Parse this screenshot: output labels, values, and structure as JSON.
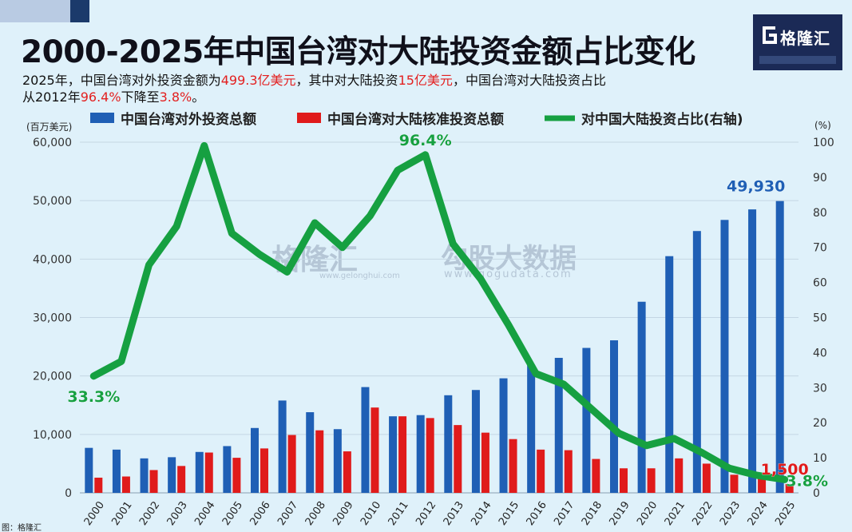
{
  "header": {
    "title": "2000-2025年中国台湾对大陆投资金额占比变化",
    "subtitle_line1": [
      {
        "text": "2025年，中国台湾对外投资金额为",
        "hl": false
      },
      {
        "text": "499.3亿美元",
        "hl": true
      },
      {
        "text": "，其中对大陆投资",
        "hl": false
      },
      {
        "text": "15亿美元",
        "hl": true
      },
      {
        "text": "，中国台湾对大陆投资占比",
        "hl": false
      }
    ],
    "subtitle_line2": [
      {
        "text": "从2012年",
        "hl": false
      },
      {
        "text": "96.4%",
        "hl": true
      },
      {
        "text": "下降至",
        "hl": false
      },
      {
        "text": "3.8%",
        "hl": true
      },
      {
        "text": "。",
        "hl": false
      }
    ]
  },
  "logo": {
    "text": "格隆汇",
    "icon": "g-logo-icon"
  },
  "watermark": {
    "left": "格隆汇",
    "left_url": "www.gelonghui.com",
    "right": "勾股大数据",
    "right_url": "www.gogudata.com"
  },
  "colors": {
    "outward": "#1f5fb5",
    "mainland": "#e01b1b",
    "share": "#16a041",
    "background": "#dff1fa",
    "accent_red": "#e32020"
  },
  "chart_data": {
    "type": "bar",
    "left_unit": "(百万美元)",
    "right_unit": "(%)",
    "categories": [
      "2000",
      "2001",
      "2002",
      "2003",
      "2004",
      "2005",
      "2006",
      "2007",
      "2008",
      "2009",
      "2010",
      "2011",
      "2012",
      "2013",
      "2014",
      "2015",
      "2016",
      "2017",
      "2018",
      "2019",
      "2020",
      "2021",
      "2022",
      "2023",
      "2024",
      "2025"
    ],
    "series": [
      {
        "name": "中国台湾对外投资总额",
        "type": "bar",
        "axis": "left",
        "values": [
          7700,
          7400,
          5900,
          6100,
          7000,
          8000,
          11100,
          15800,
          13800,
          10900,
          18100,
          13100,
          13300,
          16700,
          17600,
          19600,
          21900,
          23100,
          24800,
          26100,
          32700,
          40500,
          44800,
          46700,
          48500,
          49930
        ]
      },
      {
        "name": "中国台湾对大陆核准投资总额",
        "type": "bar",
        "axis": "left",
        "values": [
          2600,
          2800,
          3900,
          4600,
          6900,
          6000,
          7600,
          9900,
          10700,
          7100,
          14600,
          13100,
          12800,
          11600,
          10300,
          9200,
          7400,
          7300,
          5800,
          4200,
          4200,
          5900,
          5000,
          3100,
          3000,
          1500
        ]
      },
      {
        "name": "对中国大陆投资占比(右轴)",
        "type": "line",
        "axis": "right",
        "values": [
          33.3,
          37.5,
          65,
          76,
          99,
          74,
          68,
          63,
          77,
          70,
          79,
          92,
          96.4,
          71,
          61,
          48,
          34,
          31,
          24,
          17,
          13.5,
          15.5,
          11.5,
          7,
          5,
          3.8
        ]
      }
    ],
    "left_ticks": [
      "0",
      "10,000",
      "20,000",
      "30,000",
      "40,000",
      "50,000",
      "60,000"
    ],
    "left_tick_values": [
      0,
      10000,
      20000,
      30000,
      40000,
      50000,
      60000
    ],
    "right_ticks": [
      "0",
      "10",
      "20",
      "30",
      "40",
      "50",
      "60",
      "70",
      "80",
      "90",
      "100"
    ],
    "left_ylim": [
      0,
      60000
    ],
    "right_ylim": [
      0,
      100
    ],
    "annotations": [
      {
        "text": "33.3%",
        "series": 2,
        "index": 0,
        "color": "share"
      },
      {
        "text": "96.4%",
        "series": 2,
        "index": 12,
        "color": "share"
      },
      {
        "text": "49,930",
        "series": 0,
        "index": 25,
        "color": "outward"
      },
      {
        "text": "1,500",
        "series": 1,
        "index": 25,
        "color": "mainland"
      },
      {
        "text": "3.8%",
        "series": 2,
        "index": 25,
        "color": "share"
      }
    ],
    "source": "图：格隆汇",
    "grid": true,
    "legend": "top"
  }
}
